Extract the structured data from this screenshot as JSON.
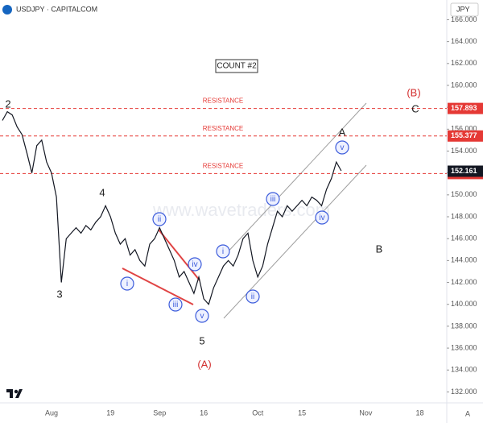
{
  "chart_data": {
    "type": "line",
    "title": "USDJPY · CAPITALCOM",
    "currency": "JPY",
    "watermark": "www.wavetraders.com",
    "count_label": "COUNT #2",
    "corner_label": "A",
    "color": "#131722",
    "categories": [
      null,
      null,
      null,
      null,
      null,
      null,
      null,
      null,
      null,
      null,
      "Aug",
      null,
      null,
      null,
      null,
      null,
      null,
      null,
      null,
      null,
      null,
      null,
      "19",
      null,
      null,
      null,
      null,
      null,
      null,
      null,
      null,
      null,
      "Sep",
      null,
      null,
      null,
      null,
      null,
      null,
      null,
      null,
      "16",
      null,
      null,
      null,
      null,
      null,
      null,
      null,
      null,
      null,
      null,
      "Oct",
      null,
      null,
      null,
      null,
      null,
      null,
      null,
      null,
      "15",
      null,
      null,
      null,
      null,
      null,
      null,
      null,
      null,
      null,
      null,
      null,
      null,
      "Nov",
      null,
      null,
      null,
      null,
      null,
      null,
      null,
      null,
      null,
      null,
      "18",
      null,
      null,
      null,
      null,
      null
    ],
    "series": [
      {
        "name": "USDJPY",
        "color": "#131722",
        "values": [
          156.8,
          157.6,
          157.3,
          156.2,
          155.5,
          153.8,
          152.0,
          154.5,
          155.0,
          153.0,
          152.0,
          149.8,
          142.0,
          146.0,
          146.5,
          147.0,
          146.5,
          147.2,
          146.8,
          147.5,
          148.0,
          149.0,
          148.0,
          146.5,
          145.5,
          146.0,
          144.5,
          145.0,
          144.0,
          143.5,
          145.5,
          146.0,
          147.0,
          146.0,
          145.0,
          144.0,
          142.5,
          143.0,
          142.0,
          141.0,
          142.5,
          140.5,
          140.0,
          141.5,
          142.5,
          143.5,
          144.0,
          143.5,
          144.5,
          146.0,
          146.5,
          144.0,
          142.5,
          143.5,
          145.5,
          147.0,
          148.5,
          148.0,
          149.0,
          148.5,
          149.0,
          149.5,
          149.0,
          149.8,
          149.5,
          149.0,
          150.5,
          151.5,
          153.0,
          152.2,
          null,
          null,
          null,
          null,
          null,
          null,
          null,
          null,
          null,
          null,
          null,
          null,
          null,
          null,
          null,
          null,
          null,
          null,
          null,
          null,
          null
        ]
      }
    ],
    "ylim": [
      131,
      167.8
    ],
    "yticks": [
      {
        "value": 132,
        "label": "132.000"
      },
      {
        "value": 134,
        "label": "134.000"
      },
      {
        "value": 136,
        "label": "136.000"
      },
      {
        "value": 138,
        "label": "138.000"
      },
      {
        "value": 140,
        "label": "140.000"
      },
      {
        "value": 142,
        "label": "142.000"
      },
      {
        "value": 144,
        "label": "144.000"
      },
      {
        "value": 146,
        "label": "146.000"
      },
      {
        "value": 148,
        "label": "148.000"
      },
      {
        "value": 150,
        "label": "150.000"
      },
      {
        "value": 152,
        "label": "152.000"
      },
      {
        "value": 154,
        "label": "154.000"
      },
      {
        "value": 156,
        "label": "156.000"
      },
      {
        "value": 158,
        "label": "158.000"
      },
      {
        "value": 160,
        "label": "160.000"
      },
      {
        "value": 162,
        "label": "162.000"
      },
      {
        "value": 164,
        "label": "164.000"
      },
      {
        "value": 166,
        "label": "166.000"
      }
    ],
    "hlines": [
      {
        "value": 157.893,
        "label": "RESISTANCE",
        "color": "#e53935"
      },
      {
        "value": 155.377,
        "label": "RESISTANCE",
        "color": "#e53935"
      },
      {
        "value": 151.946,
        "label": "RESISTANCE",
        "color": "#e53935"
      }
    ],
    "last_price": 152.161,
    "wave_labels": [
      "2",
      "3",
      "4",
      "5",
      "(A)",
      "A",
      "(B)",
      "B",
      "C"
    ],
    "subwaves_1": [
      "i",
      "ii",
      "iii",
      "iv",
      "v"
    ],
    "subwaves_2": [
      "i",
      "ii",
      "iii",
      "iv",
      "v"
    ]
  }
}
